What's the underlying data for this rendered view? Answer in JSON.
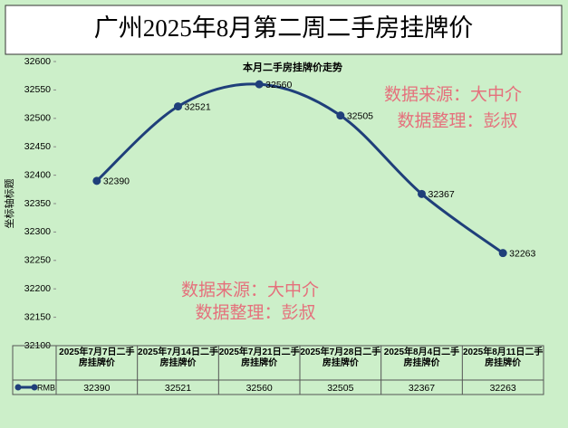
{
  "chart_data": {
    "type": "line",
    "title": "广州2025年8月第二周二手房挂牌价",
    "subtitle": "本月二手房挂牌价走势",
    "y_label": "坐标轴标题",
    "categories": [
      "2025年7月7日二手房挂牌价",
      "2025年7月14日二手房挂牌价",
      "2025年7月21日二手房挂牌价",
      "2025年7月28日二手房挂牌价",
      "2025年8月4日二手房挂牌价",
      "2025年8月11日二手房挂牌价"
    ],
    "series": [
      {
        "name": "RMB",
        "color": "#1f3f7a",
        "values": [
          32390,
          32521,
          32560,
          32505,
          32367,
          32263
        ]
      }
    ],
    "ylim": [
      32100,
      32600
    ],
    "yticks": [
      32100,
      32150,
      32200,
      32250,
      32300,
      32350,
      32400,
      32450,
      32500,
      32550,
      32600
    ],
    "grid": false,
    "smooth": true,
    "annotations": [
      "数据来源：大中介",
      "数据整理：彭叔",
      "数据来源：大中介",
      "数据整理：彭叔"
    ]
  }
}
